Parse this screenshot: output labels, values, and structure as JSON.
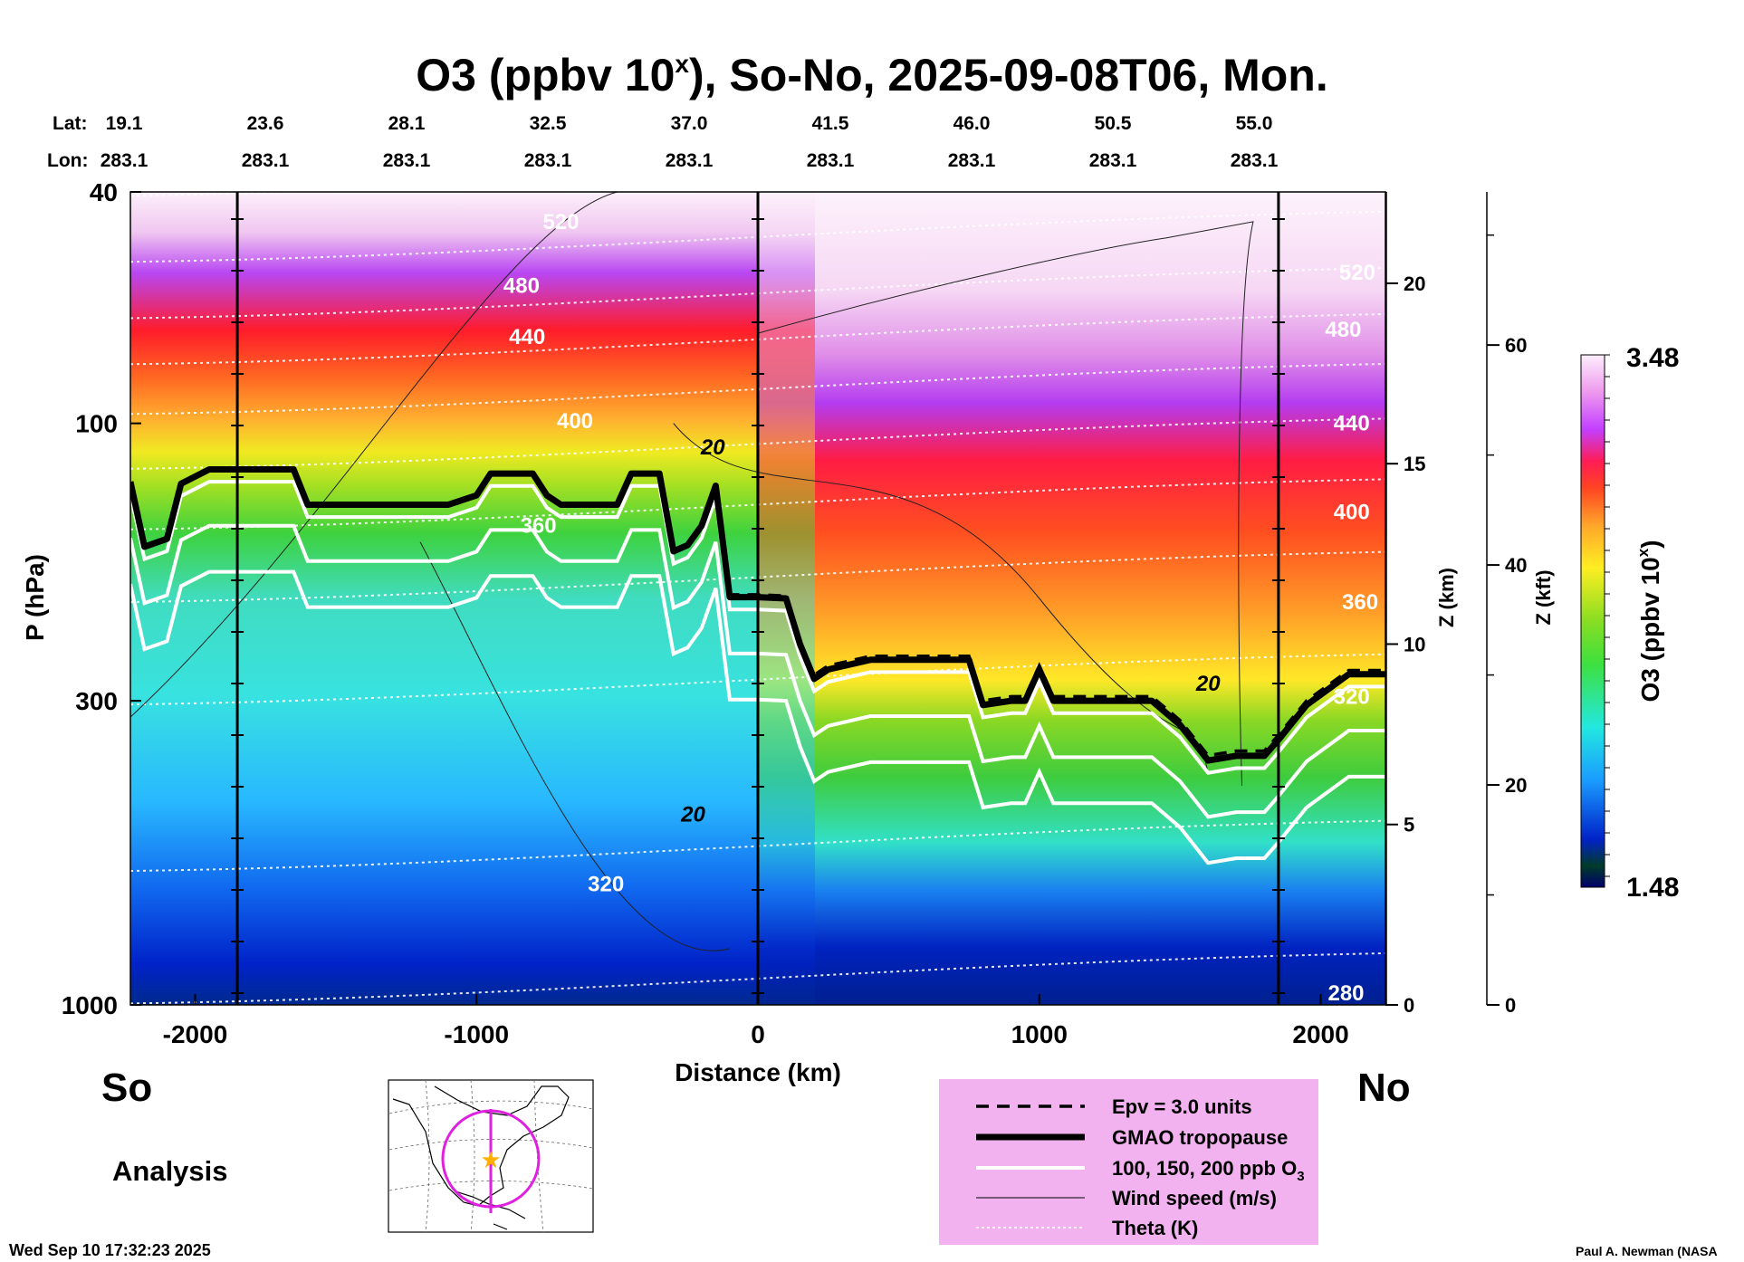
{
  "title": "O3 (ppbv 10",
  "title_sup": "x",
  "title_rest": "), So-No, 2025-09-08T06, Mon.",
  "header": {
    "lat_label": "Lat:",
    "lon_label": "Lon:",
    "lats": [
      "19.1",
      "23.6",
      "28.1",
      "32.5",
      "37.0",
      "41.5",
      "46.0",
      "50.5",
      "55.0"
    ],
    "lons": [
      "283.1",
      "283.1",
      "283.1",
      "283.1",
      "283.1",
      "283.1",
      "283.1",
      "283.1",
      "283.1"
    ]
  },
  "footer": {
    "left_end": "So",
    "right_end": "No",
    "analysis": "Analysis",
    "timestamp": "Wed Sep 10 17:32:23 2025",
    "credit": "Paul A. Newman (NASA"
  },
  "legend": {
    "background": "#f2b2f0",
    "items": [
      {
        "label": "Epv = 3.0 units",
        "style": "dashed"
      },
      {
        "label": "GMAO tropopause",
        "style": "thick"
      },
      {
        "label": "100, 150, 200 ppb O",
        "sub": "3",
        "style": "white"
      },
      {
        "label": "Wind speed (m/s)",
        "style": "thin"
      },
      {
        "label": "Theta (K)",
        "style": "dotted"
      }
    ]
  },
  "chart_data": {
    "type": "heatmap",
    "xlabel": "Distance (km)",
    "ylabel": "P (hPa)",
    "right_label_km": "Z (km)",
    "right_label_kft": "Z (kft)",
    "colorbar_label": "O3 (ppbv 10",
    "colorbar_label_sup": "x",
    "colorbar_label_end": ")",
    "colorbar_range": [
      1.48,
      3.48
    ],
    "colorbar_min_label": "1.48",
    "colorbar_max_label": "3.48",
    "x_range": [
      -2230,
      2230
    ],
    "x_ticks": [
      -2000,
      -1000,
      0,
      1000,
      2000
    ],
    "x_tick_labels": [
      "-2000",
      "-1000",
      "0",
      "1000",
      "2000"
    ],
    "p_range": [
      1000,
      40
    ],
    "p_scale": "log",
    "p_ticks": [
      40,
      100,
      300,
      1000
    ],
    "p_tick_labels": [
      "40",
      "100",
      "300",
      "1000"
    ],
    "z_km_ticks": [
      0,
      5,
      10,
      15,
      20
    ],
    "z_km_tick_labels": [
      "0",
      "5",
      "10",
      "15",
      "20"
    ],
    "z_kft_ticks": [
      0,
      20,
      40,
      60
    ],
    "z_kft_tick_labels": [
      "0",
      "20",
      "40",
      "60"
    ],
    "section_lines_km": [
      -1850,
      0,
      1850
    ],
    "tropopause": {
      "x": [
        -2230,
        -2180,
        -2100,
        -2050,
        -1950,
        -1800,
        -1650,
        -1600,
        -1500,
        -1400,
        -1300,
        -1100,
        -1000,
        -950,
        -900,
        -800,
        -750,
        -700,
        -600,
        -500,
        -450,
        -350,
        -300,
        -250,
        -200,
        -150,
        -100,
        0,
        100,
        150,
        200,
        250,
        400,
        500,
        600,
        700,
        750,
        800,
        900,
        950,
        1000,
        1050,
        1100,
        1200,
        1300,
        1400,
        1500,
        1600,
        1700,
        1800,
        1850,
        1950,
        2100,
        2230
      ],
      "p": [
        126,
        163,
        158,
        127,
        120,
        120,
        120,
        138,
        138,
        138,
        138,
        138,
        133,
        122,
        122,
        122,
        133,
        138,
        138,
        138,
        122,
        122,
        166,
        162,
        150,
        128,
        199,
        199,
        200,
        240,
        275,
        265,
        255,
        255,
        255,
        255,
        255,
        305,
        300,
        300,
        265,
        300,
        300,
        300,
        300,
        300,
        330,
        380,
        373,
        373,
        350,
        305,
        270,
        270
      ]
    },
    "contour_labels": {
      "wind": [
        {
          "text": "20",
          "x": -160,
          "p": 110
        },
        {
          "text": "20",
          "x": -230,
          "p": 470
        },
        {
          "text": "20",
          "x": 1600,
          "p": 280
        }
      ],
      "theta": [
        {
          "text": "520",
          "x": -700,
          "p": 45
        },
        {
          "text": "480",
          "x": -840,
          "p": 58
        },
        {
          "text": "440",
          "x": -820,
          "p": 71
        },
        {
          "text": "400",
          "x": -650,
          "p": 99
        },
        {
          "text": "360",
          "x": -780,
          "p": 150
        },
        {
          "text": "320",
          "x": -540,
          "p": 620
        },
        {
          "text": "520",
          "x": 2130,
          "p": 55
        },
        {
          "text": "480",
          "x": 2080,
          "p": 69
        },
        {
          "text": "440",
          "x": 2110,
          "p": 100
        },
        {
          "text": "400",
          "x": 2110,
          "p": 142
        },
        {
          "text": "360",
          "x": 2140,
          "p": 203
        },
        {
          "text": "320",
          "x": 2110,
          "p": 295
        },
        {
          "text": "280",
          "x": 2090,
          "p": 955
        }
      ]
    }
  }
}
